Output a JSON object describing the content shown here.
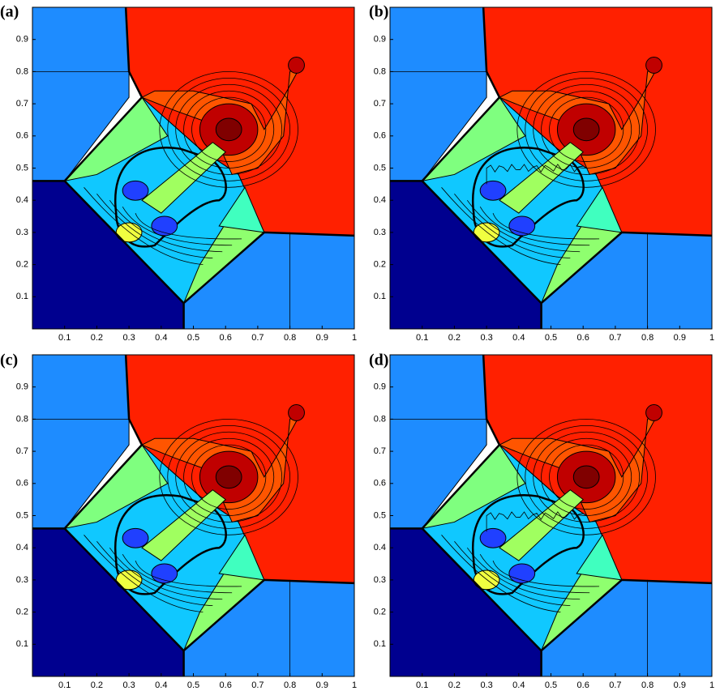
{
  "chart_data": [
    {
      "type": "contour",
      "title": "(a)",
      "xlim": [
        0,
        1
      ],
      "ylim": [
        0,
        1
      ],
      "xticks": [
        0.1,
        0.2,
        0.3,
        0.4,
        0.5,
        0.6,
        0.7,
        0.8,
        0.9,
        1
      ],
      "yticks": [
        0.1,
        0.2,
        0.3,
        0.4,
        0.5,
        0.6,
        0.7,
        0.8,
        0.9
      ]
    },
    {
      "type": "contour",
      "title": "(b)",
      "xlim": [
        0,
        1
      ],
      "ylim": [
        0,
        1
      ],
      "xticks": [
        0.1,
        0.2,
        0.3,
        0.4,
        0.5,
        0.6,
        0.7,
        0.8,
        0.9,
        1
      ],
      "yticks": [
        0.1,
        0.2,
        0.3,
        0.4,
        0.5,
        0.6,
        0.7,
        0.8,
        0.9
      ]
    },
    {
      "type": "contour",
      "title": "(c)",
      "xlim": [
        0,
        1
      ],
      "ylim": [
        0,
        1
      ],
      "xticks": [
        0.1,
        0.2,
        0.3,
        0.4,
        0.5,
        0.6,
        0.7,
        0.8,
        0.9,
        1
      ],
      "yticks": [
        0.1,
        0.2,
        0.3,
        0.4,
        0.5,
        0.6,
        0.7,
        0.8,
        0.9
      ]
    },
    {
      "type": "contour",
      "title": "(d)",
      "xlim": [
        0,
        1
      ],
      "ylim": [
        0,
        1
      ],
      "xticks": [
        0.1,
        0.2,
        0.3,
        0.4,
        0.5,
        0.6,
        0.7,
        0.8,
        0.9,
        1
      ],
      "yticks": [
        0.1,
        0.2,
        0.3,
        0.4,
        0.5,
        0.6,
        0.7,
        0.8,
        0.9
      ]
    }
  ]
}
